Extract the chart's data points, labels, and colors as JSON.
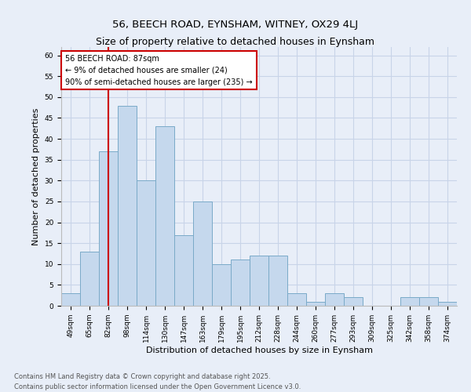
{
  "title": "56, BEECH ROAD, EYNSHAM, WITNEY, OX29 4LJ",
  "subtitle": "Size of property relative to detached houses in Eynsham",
  "xlabel": "Distribution of detached houses by size in Eynsham",
  "ylabel": "Number of detached properties",
  "categories": [
    "49sqm",
    "65sqm",
    "82sqm",
    "98sqm",
    "114sqm",
    "130sqm",
    "147sqm",
    "163sqm",
    "179sqm",
    "195sqm",
    "212sqm",
    "228sqm",
    "244sqm",
    "260sqm",
    "277sqm",
    "293sqm",
    "309sqm",
    "325sqm",
    "342sqm",
    "358sqm",
    "374sqm"
  ],
  "values": [
    3,
    13,
    37,
    48,
    30,
    43,
    17,
    25,
    10,
    11,
    12,
    12,
    3,
    1,
    3,
    2,
    0,
    0,
    2,
    2,
    1
  ],
  "bar_color": "#c5d8ed",
  "bar_edge_color": "#7aaac8",
  "grid_color": "#c8d4e8",
  "background_color": "#e8eef8",
  "vline_x": 2,
  "vline_color": "#cc0000",
  "annotation_text": "56 BEECH ROAD: 87sqm\n← 9% of detached houses are smaller (24)\n90% of semi-detached houses are larger (235) →",
  "annotation_box_color": "#ffffff",
  "annotation_box_edge_color": "#cc0000",
  "ylim": [
    0,
    62
  ],
  "yticks": [
    0,
    5,
    10,
    15,
    20,
    25,
    30,
    35,
    40,
    45,
    50,
    55,
    60
  ],
  "footer": "Contains HM Land Registry data © Crown copyright and database right 2025.\nContains public sector information licensed under the Open Government Licence v3.0.",
  "title_fontsize": 9.5,
  "label_fontsize": 8,
  "tick_fontsize": 6.5,
  "footer_fontsize": 6,
  "annot_fontsize": 7
}
